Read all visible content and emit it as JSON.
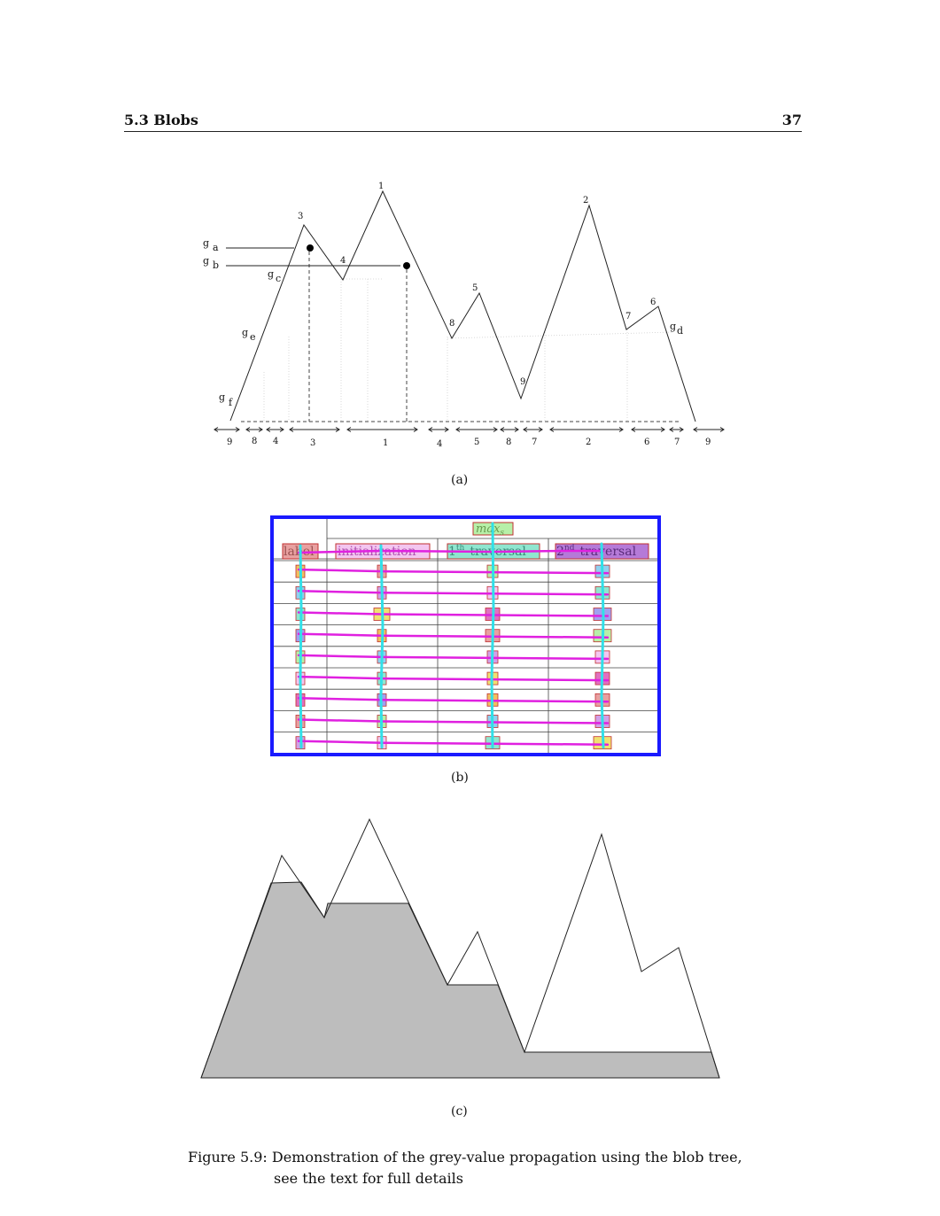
{
  "header": {
    "section": "5.3 Blobs",
    "page": "37"
  },
  "fig_a": {
    "peak_labels": [
      "1",
      "2",
      "3",
      "4",
      "5",
      "6",
      "7",
      "8",
      "9"
    ],
    "grey_levels": [
      {
        "g": "g",
        "sub": "a"
      },
      {
        "g": "g",
        "sub": "b"
      },
      {
        "g": "g",
        "sub": "c"
      },
      {
        "g": "g",
        "sub": "d"
      },
      {
        "g": "g",
        "sub": "e"
      },
      {
        "g": "g",
        "sub": "f"
      }
    ],
    "interval_labels": [
      "9",
      "8",
      "4",
      "3",
      "1",
      "4",
      "5",
      "8",
      "7",
      "2",
      "6",
      "7",
      "9"
    ],
    "label": "(a)"
  },
  "fig_b": {
    "top_header": "max",
    "top_header_sub": "s",
    "col_headers": [
      "label",
      "initialization",
      "1",
      "traversal",
      "2",
      "traversal"
    ],
    "col1_sup": "th",
    "col2_sup": "nd",
    "label": "(b)"
  },
  "fig_c": {
    "label": "(c)"
  },
  "caption": {
    "prefix": "Figure 5.9:",
    "line1": "Demonstration of the grey-value propagation using the blob tree,",
    "line2": "see the text for full details"
  }
}
